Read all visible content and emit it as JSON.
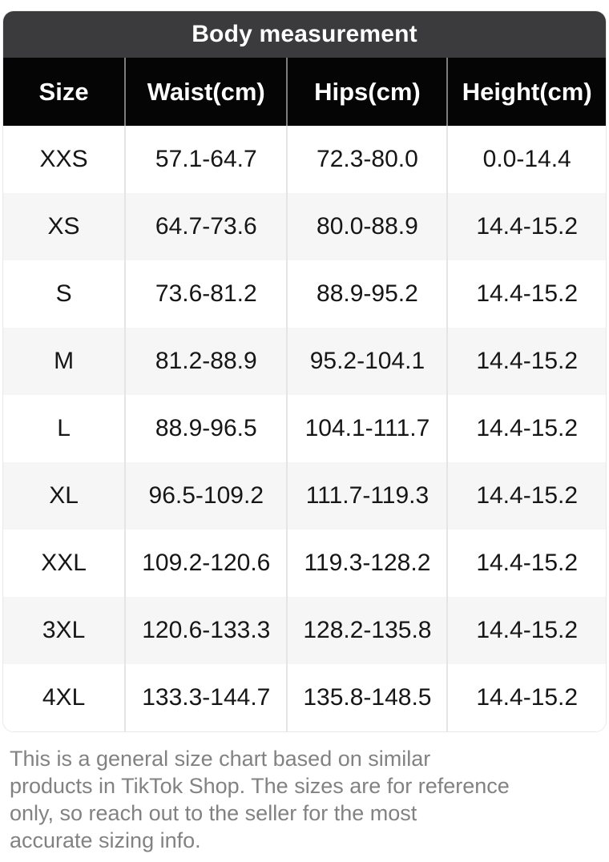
{
  "title_bar": {
    "label": "Body measurement"
  },
  "table": {
    "headers": [
      "Size",
      "Waist(cm)",
      "Hips(cm)",
      "Height(cm)"
    ],
    "rows": [
      [
        "XXS",
        "57.1-64.7",
        "72.3-80.0",
        "0.0-14.4"
      ],
      [
        "XS",
        "64.7-73.6",
        "80.0-88.9",
        "14.4-15.2"
      ],
      [
        "S",
        "73.6-81.2",
        "88.9-95.2",
        "14.4-15.2"
      ],
      [
        "M",
        "81.2-88.9",
        "95.2-104.1",
        "14.4-15.2"
      ],
      [
        "L",
        "88.9-96.5",
        "104.1-111.7",
        "14.4-15.2"
      ],
      [
        "XL",
        "96.5-109.2",
        "111.7-119.3",
        "14.4-15.2"
      ],
      [
        "XXL",
        "109.2-120.6",
        "119.3-128.2",
        "14.4-15.2"
      ],
      [
        "3XL",
        "120.6-133.3",
        "128.2-135.8",
        "14.4-15.2"
      ],
      [
        "4XL",
        "133.3-144.7",
        "135.8-148.5",
        "14.4-15.2"
      ]
    ]
  },
  "footer": {
    "lines": [
      "This is a general size chart based on similar",
      "products in TikTok Shop. The sizes are for reference",
      "only, so reach out to the seller for the most",
      "accurate sizing info."
    ]
  },
  "colors": {
    "title_bar_bg": "#3b3b3d",
    "header_bg": "#050505",
    "header_text": "#ffffff",
    "header_divider": "#7d7d7d",
    "row_alt_bg": "#f6f6f7",
    "row_divider": "#e5e5e5",
    "card_border": "#e9e9e9",
    "cell_text": "#161616",
    "footer_text": "#828282"
  }
}
